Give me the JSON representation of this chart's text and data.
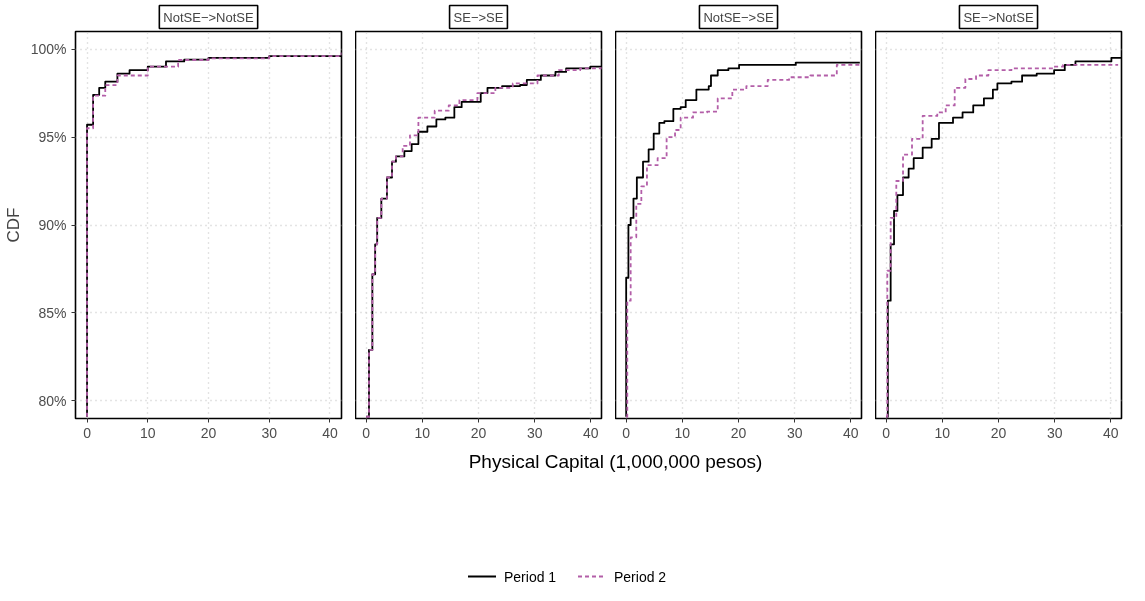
{
  "chart_data": [
    {
      "type": "step",
      "title": "NotSE−>NotSE",
      "ylabel": "CDF",
      "legend": "bottom",
      "grid": true,
      "xlim": [
        -1.9,
        41.9
      ],
      "xticks": [
        0,
        10,
        20,
        30,
        40
      ],
      "ylim": [
        79.0,
        101.0
      ],
      "yticks": [
        {
          "value": 80,
          "label": "80%"
        },
        {
          "value": 85,
          "label": "85%"
        },
        {
          "value": 90,
          "label": "90%"
        },
        {
          "value": 95,
          "label": "95%"
        },
        {
          "value": 100,
          "label": "100%"
        }
      ],
      "series": [
        {
          "name": "Period 1",
          "color": "#000000",
          "line_style": "solid",
          "x": [
            0,
            0,
            1,
            2,
            3,
            5,
            7,
            10,
            13,
            16,
            20,
            30,
            41.9
          ],
          "values": [
            79.1,
            95.7,
            97.4,
            97.8,
            98.15,
            98.6,
            98.8,
            99.0,
            99.3,
            99.4,
            99.5,
            99.6,
            99.65
          ]
        },
        {
          "name": "Period 2",
          "color": "#b35ea8",
          "line_style": "dashed",
          "x": [
            0,
            0,
            1,
            3,
            5,
            10,
            15,
            20,
            30,
            41.9
          ],
          "values": [
            79.1,
            95.5,
            97.35,
            97.95,
            98.5,
            99.0,
            99.38,
            99.47,
            99.6,
            99.8
          ]
        }
      ]
    },
    {
      "type": "step",
      "title": "SE−>SE",
      "grid": true,
      "tick_labels": "x",
      "xlim": [
        -1.9,
        41.9
      ],
      "xticks": [
        0,
        10,
        20,
        30,
        40
      ],
      "ylim": [
        79.0,
        101.0
      ],
      "yticks": [
        80,
        85,
        90,
        95,
        100
      ],
      "series": [
        {
          "color": "#000000",
          "line_style": "solid",
          "x": [
            0,
            0.5,
            1.1,
            1.6,
            1.96,
            2.7,
            3.7,
            4.6,
            5.3,
            6.8,
            8.1,
            9.3,
            10.9,
            12.5,
            14.1,
            15.7,
            17,
            18.5,
            20.4,
            21.6,
            24.2,
            27.4,
            28.6,
            31.1,
            33.7,
            35.6,
            39.9,
            41.9
          ],
          "values": [
            79.1,
            82.9,
            87.2,
            88.9,
            90.4,
            91.5,
            92.7,
            93.6,
            93.9,
            94.2,
            94.6,
            95.3,
            95.6,
            96.0,
            96.1,
            96.7,
            97.0,
            97.0,
            97.5,
            97.8,
            97.9,
            97.96,
            98.25,
            98.5,
            98.7,
            98.9,
            99.0,
            99.04
          ]
        },
        {
          "color": "#b35ea8",
          "line_style": "dashed",
          "x": [
            0,
            0.5,
            1.1,
            1.6,
            1.96,
            2.7,
            3.7,
            4.6,
            5.3,
            6.5,
            7.8,
            9.3,
            12.2,
            14.7,
            16.6,
            19.8,
            23,
            26.1,
            30.5,
            34.3,
            38.1,
            41.9
          ],
          "values": [
            79.1,
            82.9,
            87.2,
            88.9,
            90.4,
            91.5,
            92.7,
            93.6,
            93.9,
            94.5,
            95.1,
            96.1,
            96.5,
            96.8,
            97.1,
            97.5,
            97.8,
            98.05,
            98.5,
            98.8,
            98.9,
            99.0
          ]
        }
      ]
    },
    {
      "type": "step",
      "title": "NotSE−>SE",
      "annotations": [
        "Physical Capital (1,000,000 pesos)"
      ],
      "grid": true,
      "tick_labels": "x",
      "xlim": [
        -1.9,
        41.9
      ],
      "xticks": [
        0,
        10,
        20,
        30,
        40
      ],
      "ylim": [
        79.0,
        101.0
      ],
      "yticks": [
        80,
        85,
        90,
        95,
        100
      ],
      "series": [
        {
          "color": "#000000",
          "line_style": "solid",
          "x": [
            0,
            0,
            0.4,
            0.8,
            1.3,
            1.9,
            3.0,
            4.0,
            4.9,
            5.9,
            6.8,
            8.4,
            9.7,
            10.6,
            12.5,
            14.7,
            15.1,
            16.3,
            18.2,
            20.1,
            30.2,
            41.6
          ],
          "values": [
            79.1,
            87.0,
            90.0,
            90.4,
            91.5,
            92.7,
            93.6,
            94.3,
            95.2,
            95.8,
            95.9,
            96.6,
            96.7,
            97.1,
            97.7,
            97.9,
            98.5,
            98.8,
            98.9,
            99.1,
            99.23,
            99.23
          ]
        },
        {
          "color": "#b35ea8",
          "line_style": "dashed",
          "x": [
            0,
            0.2,
            0.8,
            1.8,
            2.7,
            3.7,
            5.6,
            7.2,
            8.7,
            9.7,
            11.9,
            14.4,
            16.3,
            18.9,
            21.4,
            25.2,
            29,
            32.8,
            37.5,
            41.6
          ],
          "values": [
            79.1,
            85.7,
            89.3,
            91.2,
            92.2,
            93.4,
            93.8,
            95.0,
            95.4,
            96.1,
            96.4,
            96.45,
            97.2,
            97.7,
            97.9,
            98.25,
            98.4,
            98.5,
            99.1,
            99.1
          ]
        }
      ]
    },
    {
      "type": "step",
      "title": "SE−>NotSE",
      "grid": true,
      "tick_labels": "x",
      "xlim": [
        -1.9,
        41.9
      ],
      "xticks": [
        0,
        10,
        20,
        30,
        40
      ],
      "ylim": [
        79.0,
        101.0
      ],
      "yticks": [
        80,
        85,
        90,
        95,
        100
      ],
      "series": [
        {
          "color": "#000000",
          "line_style": "solid",
          "x": [
            0,
            0.3,
            0.8,
            1.4,
            2.0,
            3.0,
            4.0,
            4.9,
            6.5,
            8.1,
            9.4,
            11.9,
            13.6,
            15.5,
            17.4,
            19.0,
            19.8,
            22.3,
            24.2,
            26.8,
            29.9,
            31.8,
            33.7,
            40.1,
            41.9
          ],
          "values": [
            79.1,
            85.7,
            88.9,
            90.8,
            91.7,
            92.7,
            93.2,
            93.8,
            94.4,
            94.9,
            95.8,
            96.1,
            96.4,
            96.8,
            97.2,
            97.7,
            98.05,
            98.15,
            98.5,
            98.6,
            98.8,
            99.1,
            99.3,
            99.5,
            99.5
          ]
        },
        {
          "color": "#b35ea8",
          "line_style": "dashed",
          "x": [
            0,
            0.2,
            0.8,
            1.8,
            3.0,
            4.6,
            6.5,
            9.1,
            10.6,
            12.2,
            14.1,
            16,
            18.2,
            22.3,
            29.9,
            31.5,
            41.3
          ],
          "values": [
            79.1,
            87.4,
            90.4,
            92.5,
            94.0,
            94.9,
            96.2,
            96.4,
            96.8,
            97.8,
            98.3,
            98.5,
            98.8,
            98.9,
            99.0,
            99.1,
            99.1
          ]
        }
      ]
    }
  ]
}
